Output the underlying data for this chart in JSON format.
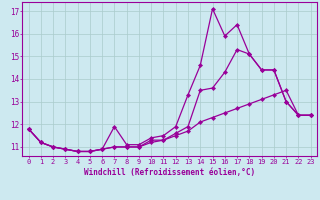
{
  "bg_color": "#cde9f0",
  "line_color": "#990099",
  "grid_color": "#aacccc",
  "xlim": [
    -0.5,
    23.5
  ],
  "ylim": [
    10.6,
    17.4
  ],
  "yticks": [
    11,
    12,
    13,
    14,
    15,
    16,
    17
  ],
  "xticks": [
    0,
    1,
    2,
    3,
    4,
    5,
    6,
    7,
    8,
    9,
    10,
    11,
    12,
    13,
    14,
    15,
    16,
    17,
    18,
    19,
    20,
    21,
    22,
    23
  ],
  "hours": [
    0,
    1,
    2,
    3,
    4,
    5,
    6,
    7,
    8,
    9,
    10,
    11,
    12,
    13,
    14,
    15,
    16,
    17,
    18,
    19,
    20,
    21,
    22,
    23
  ],
  "line1": [
    11.8,
    11.2,
    11.0,
    10.9,
    10.8,
    10.8,
    10.9,
    11.9,
    11.1,
    11.1,
    11.4,
    11.5,
    11.9,
    13.3,
    14.6,
    17.1,
    15.9,
    16.4,
    15.1,
    14.4,
    14.4,
    13.0,
    12.4,
    12.4
  ],
  "line2": [
    11.8,
    11.2,
    11.0,
    10.9,
    10.8,
    10.8,
    10.9,
    11.0,
    11.0,
    11.0,
    11.3,
    11.3,
    11.6,
    11.9,
    13.5,
    13.6,
    14.3,
    15.3,
    15.1,
    14.4,
    14.4,
    13.0,
    12.4,
    12.4
  ],
  "line3": [
    11.8,
    11.2,
    11.0,
    10.9,
    10.8,
    10.8,
    10.9,
    11.0,
    11.0,
    11.0,
    11.2,
    11.3,
    11.5,
    11.7,
    12.1,
    12.3,
    12.5,
    12.7,
    12.9,
    13.1,
    13.3,
    13.5,
    12.4,
    12.4
  ],
  "xlabel": "Windchill (Refroidissement éolien,°C)",
  "xlabel_fontsize": 5.5,
  "tick_fontsize": 5.0,
  "ytick_fontsize": 5.5,
  "marker_size": 2.2,
  "line_width": 0.9
}
